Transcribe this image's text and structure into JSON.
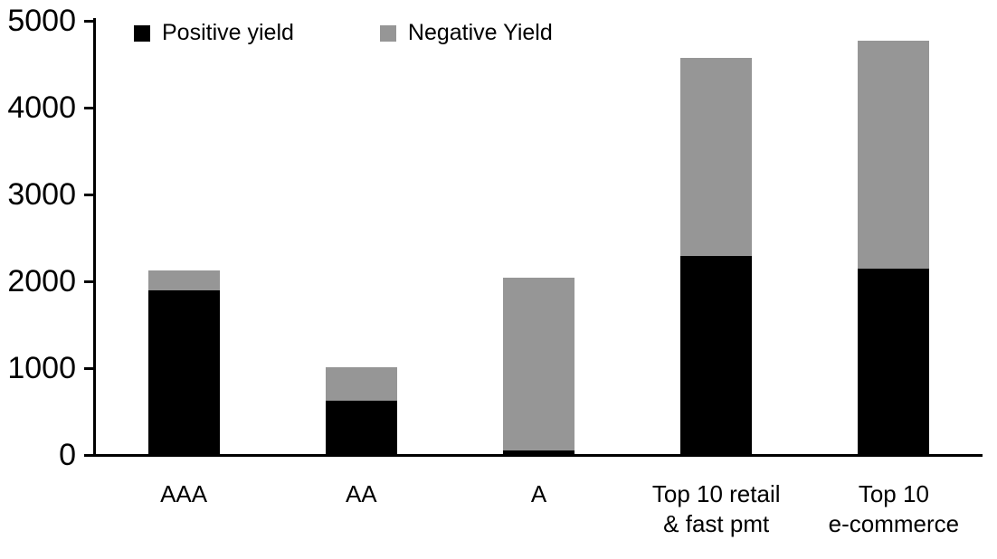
{
  "chart_data": {
    "type": "bar",
    "stacked": true,
    "title": "",
    "xlabel": "",
    "ylabel": "",
    "grid": false,
    "legend_position": "top-left",
    "ylim": [
      0,
      5000
    ],
    "yticks": [
      0,
      1000,
      2000,
      3000,
      4000,
      5000
    ],
    "categories": [
      "AAA",
      "AA",
      "A",
      "Top 10 retail & fast pmt",
      "Top 10 e-commerce"
    ],
    "series": [
      {
        "name": "Positive yield",
        "color": "#000000",
        "values": [
          1900,
          620,
          50,
          2290,
          2150
        ]
      },
      {
        "name": "Negative Yield",
        "color": "#969696",
        "values": [
          230,
          390,
          1990,
          2280,
          2620
        ]
      }
    ]
  },
  "x_axis": {
    "label_lines": [
      [
        "AAA"
      ],
      [
        "AA"
      ],
      [
        "A"
      ],
      [
        "Top 10 retail",
        "& fast pmt"
      ],
      [
        "Top 10",
        "e-commerce"
      ]
    ]
  },
  "legend": {
    "items": [
      {
        "label": "Positive yield",
        "color": "#000000"
      },
      {
        "label": "Negative Yield",
        "color": "#969696"
      }
    ]
  }
}
